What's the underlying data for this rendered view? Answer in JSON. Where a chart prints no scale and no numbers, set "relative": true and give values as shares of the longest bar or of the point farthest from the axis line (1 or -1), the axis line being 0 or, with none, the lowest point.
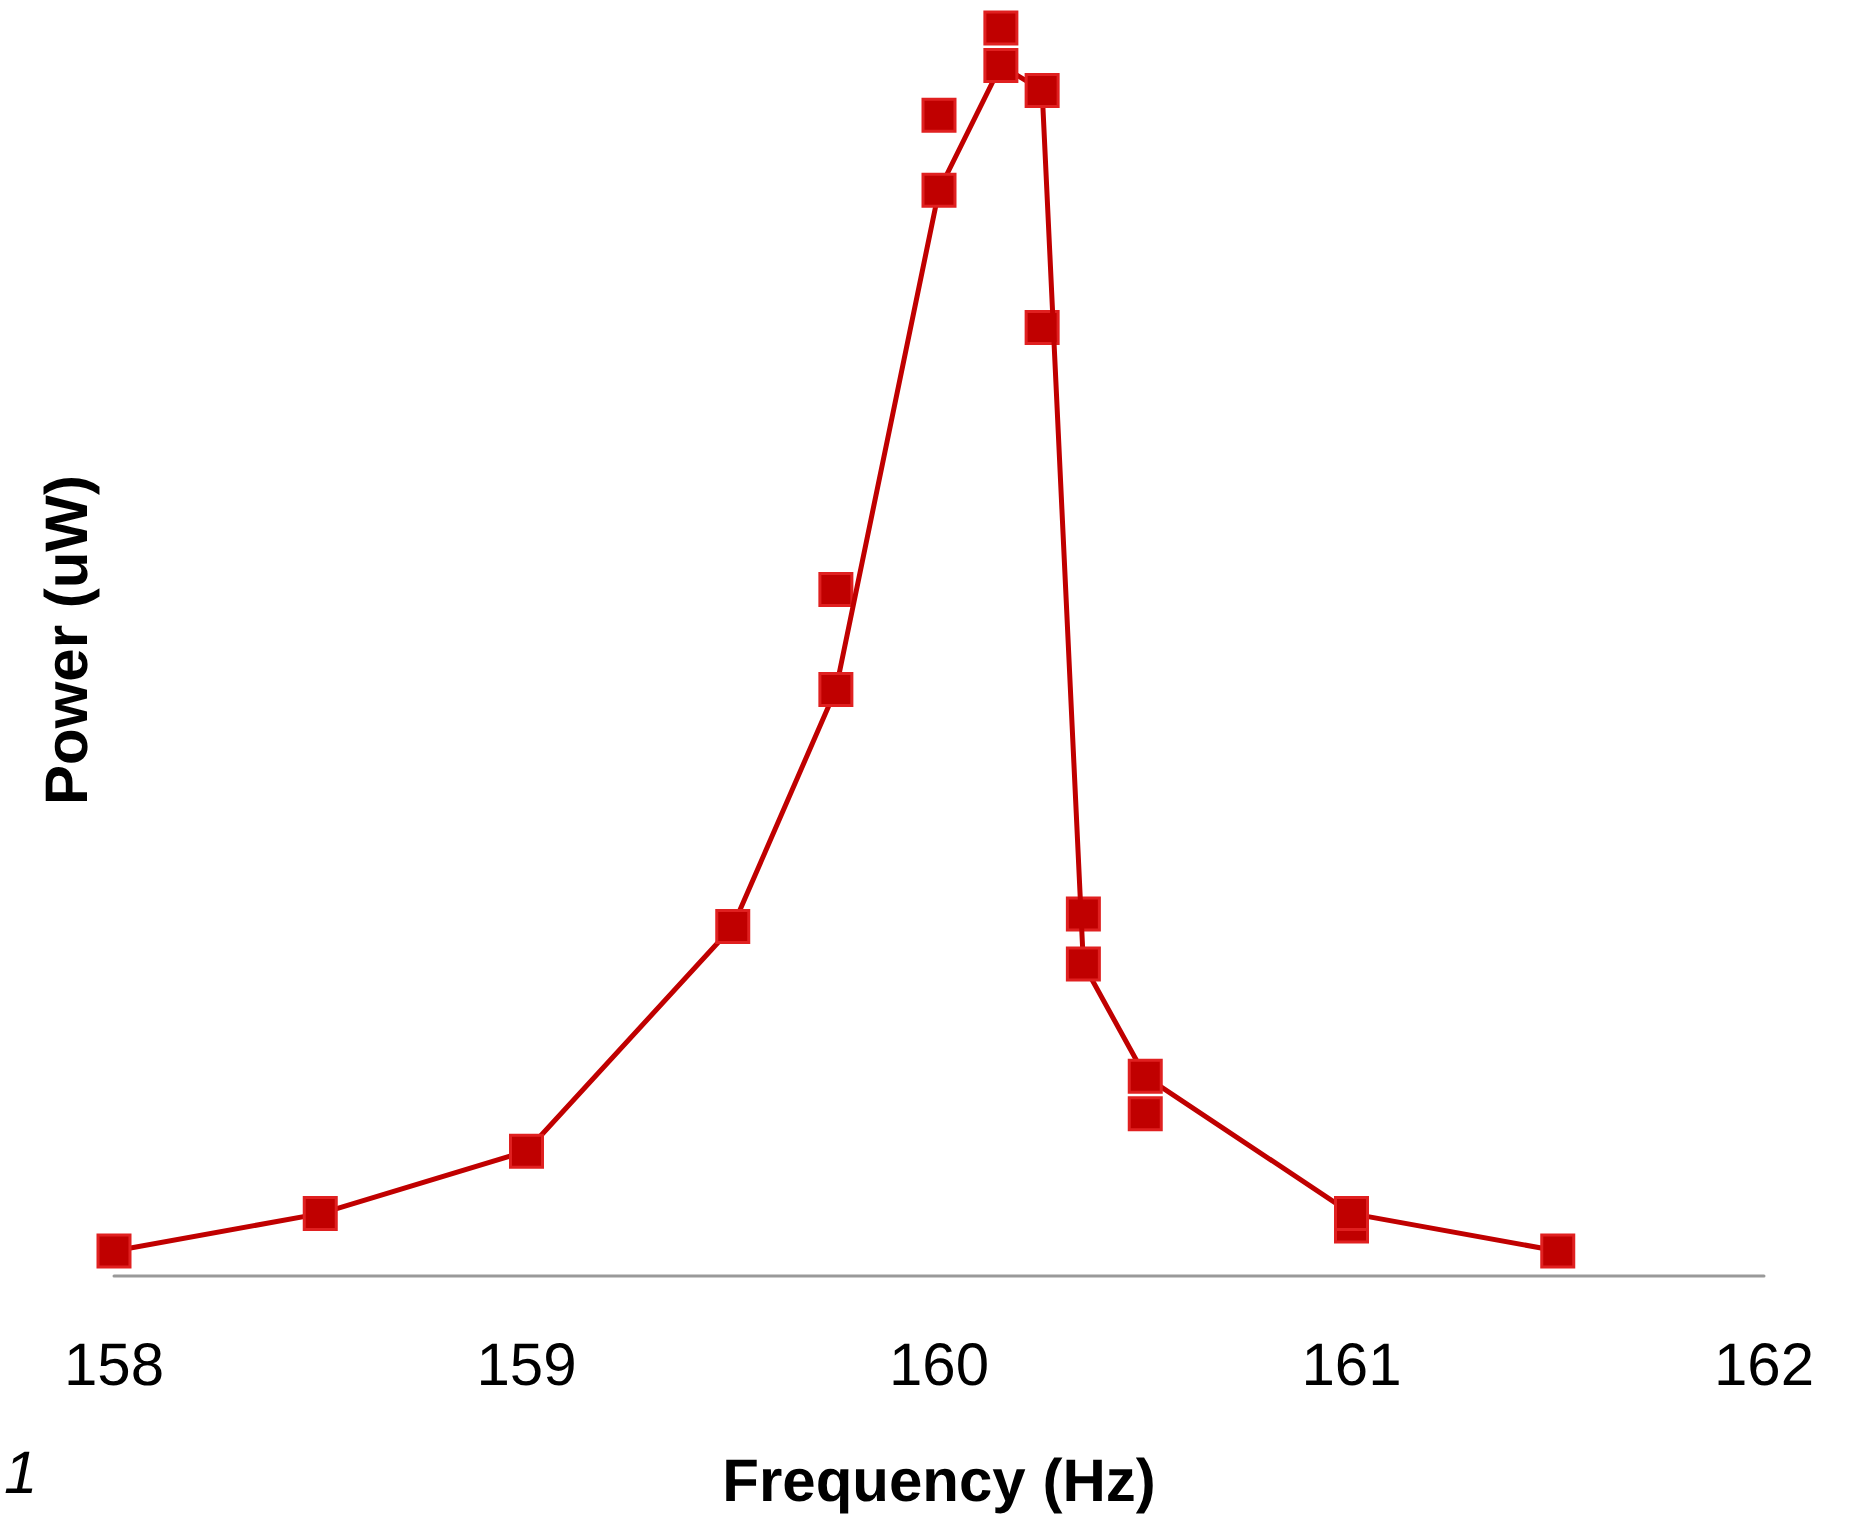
{
  "chart_data": {
    "type": "line",
    "xlabel": "Frequency (Hz)",
    "ylabel": "Power (uW)",
    "relative": true,
    "xlim": [
      158,
      162
    ],
    "xticks": [
      158,
      159,
      160,
      161,
      162
    ],
    "grid": false,
    "marker": "square",
    "line_style": "solid",
    "annotations": [
      "1"
    ],
    "series": [
      {
        "color": "#c00000",
        "x": [
          158,
          158.5,
          159,
          159.5,
          159.75,
          160,
          160.15,
          160.25,
          160.35,
          160.5,
          161,
          161.5
        ],
        "values": [
          0.02,
          0.05,
          0.1,
          0.28,
          0.47,
          0.87,
          0.97,
          0.95,
          0.25,
          0.16,
          0.05,
          0.02
        ]
      },
      {
        "type": "scatter",
        "color": "#c00000",
        "x": [
          159.75,
          160,
          160.15,
          160.25,
          160.35,
          160.5,
          161
        ],
        "values": [
          0.55,
          0.93,
          1,
          0.76,
          0.29,
          0.13,
          0.04
        ]
      }
    ]
  }
}
